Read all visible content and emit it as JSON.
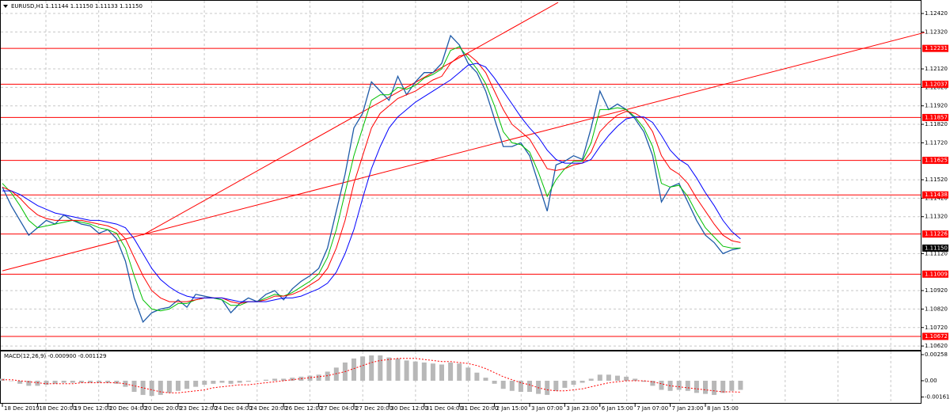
{
  "chart_data": [
    {
      "type": "line",
      "title": "EURUSD,H1  1.11144 1.11150 1.11133 1.11150",
      "categories": [
        "18 Dec 2019",
        null,
        null,
        null,
        "18 Dec 20:00",
        null,
        null,
        null,
        "19 Dec 12:00",
        null,
        null,
        null,
        "20 Dec 04:00",
        null,
        null,
        null,
        "20 Dec 20:00",
        null,
        null,
        null,
        "23 Dec 12:00",
        null,
        null,
        null,
        "24 Dec 04:00",
        null,
        null,
        null,
        "24 Dec 20:00",
        null,
        null,
        null,
        "26 Dec 12:00",
        null,
        null,
        null,
        "27 Dec 04:00",
        null,
        null,
        null,
        "27 Dec 20:00",
        null,
        null,
        null,
        "30 Dec 12:00",
        null,
        null,
        null,
        "31 Dec 04:00",
        null,
        null,
        null,
        "31 Dec 20:00",
        null,
        null,
        null,
        "2 Jan 15:00",
        null,
        null,
        null,
        "3 Jan 07:00",
        null,
        null,
        null,
        "3 Jan 23:00",
        null,
        null,
        null,
        "6 Jan 15:00",
        null,
        null,
        null,
        "7 Jan 07:00",
        null,
        null,
        null,
        "7 Jan 23:00",
        null,
        null,
        null,
        "8 Jan 15:00",
        null,
        null,
        null,
        null
      ],
      "series": [
        {
          "color": "#1e5aa8",
          "values": [
            1.1148,
            1.1138,
            1.113,
            1.1122,
            1.1126,
            1.113,
            1.1128,
            1.1133,
            1.113,
            1.1128,
            1.1127,
            1.1123,
            1.1125,
            1.112,
            1.1108,
            1.1088,
            1.1075,
            1.108,
            1.1082,
            1.1083,
            1.1087,
            1.1083,
            1.109,
            1.1089,
            1.1088,
            1.1087,
            1.108,
            1.1085,
            1.1088,
            1.1086,
            1.109,
            1.1092,
            1.1087,
            1.1093,
            1.1097,
            1.11,
            1.1104,
            1.1115,
            1.1135,
            1.1155,
            1.118,
            1.1188,
            1.1205,
            1.12,
            1.1195,
            1.1208,
            1.1198,
            1.1205,
            1.121,
            1.121,
            1.1215,
            1.123,
            1.1225,
            1.1215,
            1.121,
            1.12,
            1.1185,
            1.117,
            1.117,
            1.1172,
            1.1165,
            1.115,
            1.1135,
            1.116,
            1.1162,
            1.1165,
            1.1163,
            1.118,
            1.12,
            1.119,
            1.1193,
            1.119,
            1.1185,
            1.1178,
            1.1165,
            1.114,
            1.1148,
            1.115,
            1.114,
            1.113,
            1.1122,
            1.1118,
            1.1112,
            1.1114,
            1.1115
          ]
        },
        {
          "color": "#00c000",
          "values": [
            1.115,
            1.1145,
            1.1138,
            1.113,
            1.1126,
            1.1127,
            1.1128,
            1.1129,
            1.113,
            1.1129,
            1.1128,
            1.1126,
            1.1125,
            1.1123,
            1.1115,
            1.11,
            1.1087,
            1.1082,
            1.1081,
            1.1082,
            1.1085,
            1.1085,
            1.1087,
            1.1088,
            1.1088,
            1.1087,
            1.1084,
            1.1084,
            1.1086,
            1.1086,
            1.1088,
            1.109,
            1.1089,
            1.1091,
            1.1094,
            1.1097,
            1.1101,
            1.111,
            1.1125,
            1.1145,
            1.1165,
            1.118,
            1.1195,
            1.1198,
            1.1198,
            1.1202,
            1.1201,
            1.1203,
            1.1207,
            1.1209,
            1.1212,
            1.1222,
            1.1224,
            1.1218,
            1.1212,
            1.1204,
            1.1192,
            1.1178,
            1.1172,
            1.1171,
            1.1167,
            1.1156,
            1.1143,
            1.1152,
            1.1158,
            1.1162,
            1.1162,
            1.1172,
            1.119,
            1.119,
            1.1191,
            1.119,
            1.1186,
            1.118,
            1.117,
            1.115,
            1.1148,
            1.1149,
            1.1143,
            1.1134,
            1.1126,
            1.1121,
            1.1116,
            1.1115,
            1.1115
          ]
        },
        {
          "color": "#ff0000",
          "values": [
            1.1148,
            1.1146,
            1.1142,
            1.1137,
            1.1133,
            1.1131,
            1.113,
            1.113,
            1.113,
            1.113,
            1.1129,
            1.1128,
            1.1127,
            1.1125,
            1.112,
            1.111,
            1.11,
            1.1092,
            1.1088,
            1.1086,
            1.1086,
            1.1086,
            1.1087,
            1.1088,
            1.1088,
            1.1088,
            1.1086,
            1.1085,
            1.1086,
            1.1086,
            1.1087,
            1.1089,
            1.1089,
            1.109,
            1.1092,
            1.1095,
            1.1098,
            1.1104,
            1.1115,
            1.113,
            1.115,
            1.1165,
            1.118,
            1.1188,
            1.1192,
            1.1196,
            1.1198,
            1.12,
            1.1203,
            1.1206,
            1.1208,
            1.1215,
            1.1219,
            1.122,
            1.1216,
            1.121,
            1.12,
            1.119,
            1.1182,
            1.1178,
            1.1174,
            1.1166,
            1.1158,
            1.1157,
            1.1158,
            1.116,
            1.1161,
            1.1167,
            1.1178,
            1.1183,
            1.1187,
            1.1189,
            1.1188,
            1.1185,
            1.1178,
            1.1165,
            1.1158,
            1.1155,
            1.115,
            1.1142,
            1.1135,
            1.1128,
            1.1122,
            1.1119,
            1.1118
          ]
        },
        {
          "color": "#0000ff",
          "values": [
            1.1146,
            1.1146,
            1.1144,
            1.1141,
            1.1138,
            1.1136,
            1.1134,
            1.1133,
            1.1132,
            1.1131,
            1.113,
            1.113,
            1.1129,
            1.1128,
            1.1126,
            1.112,
            1.1112,
            1.1104,
            1.1098,
            1.1094,
            1.1091,
            1.1089,
            1.1088,
            1.1088,
            1.1088,
            1.1088,
            1.1087,
            1.1086,
            1.1086,
            1.1086,
            1.1086,
            1.1087,
            1.1088,
            1.1088,
            1.1089,
            1.1091,
            1.1093,
            1.1096,
            1.1102,
            1.1112,
            1.1125,
            1.1142,
            1.1158,
            1.117,
            1.118,
            1.1186,
            1.119,
            1.1194,
            1.1197,
            1.12,
            1.1203,
            1.1206,
            1.121,
            1.1214,
            1.1215,
            1.1213,
            1.1207,
            1.12,
            1.1193,
            1.1186,
            1.118,
            1.1175,
            1.1168,
            1.1163,
            1.1161,
            1.1161,
            1.1161,
            1.1163,
            1.117,
            1.1176,
            1.1181,
            1.1185,
            1.1186,
            1.1186,
            1.1183,
            1.1176,
            1.1168,
            1.1163,
            1.116,
            1.1153,
            1.1145,
            1.1138,
            1.113,
            1.1124,
            1.112
          ]
        }
      ],
      "trendlines": [
        {
          "color": "#ff0000",
          "values": [
            1.11027,
            1.12317
          ]
        },
        {
          "color": "#ff0000",
          "values": [
            1.1122,
            1.1248
          ]
        }
      ],
      "price_levels": [
        1.12231,
        1.12037,
        1.11857,
        1.11625,
        1.11438,
        1.11226,
        1.11009,
        1.10672
      ],
      "level_color": "#ff0000",
      "last_price": {
        "value": 1.1115,
        "label": "1.11150"
      },
      "ylim": [
        1.10599,
        1.12493
      ],
      "yticks": [
        {
          "value": 1.1242,
          "label": "1.12420"
        },
        {
          "value": 1.1232,
          "label": "1.12320"
        },
        {
          "value": 1.1212,
          "label": "1.12120"
        },
        {
          "value": 1.1202,
          "label": "1.12020"
        },
        {
          "value": 1.1192,
          "label": "1.11920"
        },
        {
          "value": 1.1182,
          "label": "1.11820"
        },
        {
          "value": 1.1172,
          "label": "1.11720"
        },
        {
          "value": 1.1152,
          "label": "1.11520"
        },
        {
          "value": 1.1142,
          "label": "1.11420"
        },
        {
          "value": 1.1132,
          "label": "1.11320"
        },
        {
          "value": 1.1112,
          "label": "1.11120"
        },
        {
          "value": 1.1092,
          "label": "1.10920"
        },
        {
          "value": 1.1082,
          "label": "1.10820"
        },
        {
          "value": 1.1072,
          "label": "1.10720"
        },
        {
          "value": 1.1062,
          "label": "1.10620"
        }
      ],
      "grid": true
    },
    {
      "type": "bar",
      "title": "MACD(12,26,9) -0.000900 -0.001129",
      "series": [
        {
          "color": "#b8b8b8",
          "values": [
            0.0002,
            0.0,
            -0.0003,
            -0.0005,
            -0.0005,
            -0.0004,
            -0.0003,
            -0.0002,
            -0.0002,
            -0.0002,
            -0.0002,
            -0.0002,
            -0.0002,
            -0.0003,
            -0.0006,
            -0.0011,
            -0.0014,
            -0.0015,
            -0.0014,
            -0.0012,
            -0.001,
            -0.0008,
            -0.0006,
            -0.0004,
            -0.0003,
            -0.0002,
            -0.0003,
            -0.0002,
            -0.0001,
            0.0,
            0.0001,
            0.0002,
            0.0002,
            0.0003,
            0.0004,
            0.0005,
            0.0006,
            0.0009,
            0.0013,
            0.0018,
            0.0022,
            0.0024,
            0.0025,
            0.0025,
            0.0023,
            0.0022,
            0.002,
            0.0019,
            0.0018,
            0.0017,
            0.0016,
            0.0018,
            0.0017,
            0.0013,
            0.0008,
            0.0003,
            -0.0003,
            -0.0008,
            -0.001,
            -0.0011,
            -0.0011,
            -0.0013,
            -0.0014,
            -0.001,
            -0.0007,
            -0.0004,
            -0.0002,
            0.0002,
            0.0006,
            0.0006,
            0.0005,
            0.0004,
            0.0002,
            -0.0001,
            -0.0005,
            -0.0009,
            -0.001,
            -0.0009,
            -0.001,
            -0.0012,
            -0.0013,
            -0.0014,
            -0.0012,
            -0.001,
            -0.0009
          ]
        },
        {
          "color": "#ff0000",
          "values": [
            0.0001,
            0.0001,
            0.0,
            -0.0001,
            -0.0002,
            -0.0003,
            -0.0003,
            -0.0003,
            -0.0003,
            -0.0002,
            -0.0002,
            -0.0002,
            -0.0002,
            -0.0002,
            -0.0003,
            -0.0005,
            -0.0007,
            -0.0009,
            -0.0011,
            -0.0012,
            -0.0012,
            -0.0011,
            -0.001,
            -0.0009,
            -0.0007,
            -0.0006,
            -0.0005,
            -0.0004,
            -0.0004,
            -0.0003,
            -0.0002,
            -0.0001,
            0.0,
            0.0001,
            0.0002,
            0.0003,
            0.0004,
            0.0005,
            0.0007,
            0.0009,
            0.0012,
            0.0015,
            0.0018,
            0.002,
            0.0021,
            0.0022,
            0.0022,
            0.0022,
            0.0021,
            0.002,
            0.0019,
            0.0019,
            0.0018,
            0.0017,
            0.0015,
            0.0012,
            0.0008,
            0.0004,
            0.0001,
            -0.0002,
            -0.0004,
            -0.0007,
            -0.0009,
            -0.001,
            -0.001,
            -0.0009,
            -0.0008,
            -0.0006,
            -0.0004,
            -0.0002,
            -0.0001,
            0.0,
            0.0,
            0.0,
            -0.0001,
            -0.0003,
            -0.0005,
            -0.0006,
            -0.0007,
            -0.0008,
            -0.0009,
            -0.001,
            -0.0011,
            -0.0011,
            -0.001129
          ]
        }
      ],
      "ylim": [
        -0.00227,
        0.00297
      ],
      "yticks": [
        {
          "value": 0.00258,
          "label": "0.00258"
        },
        {
          "value": 0,
          "label": "0.00"
        },
        {
          "value": -0.00161,
          "label": "-0.00161"
        }
      ]
    }
  ]
}
